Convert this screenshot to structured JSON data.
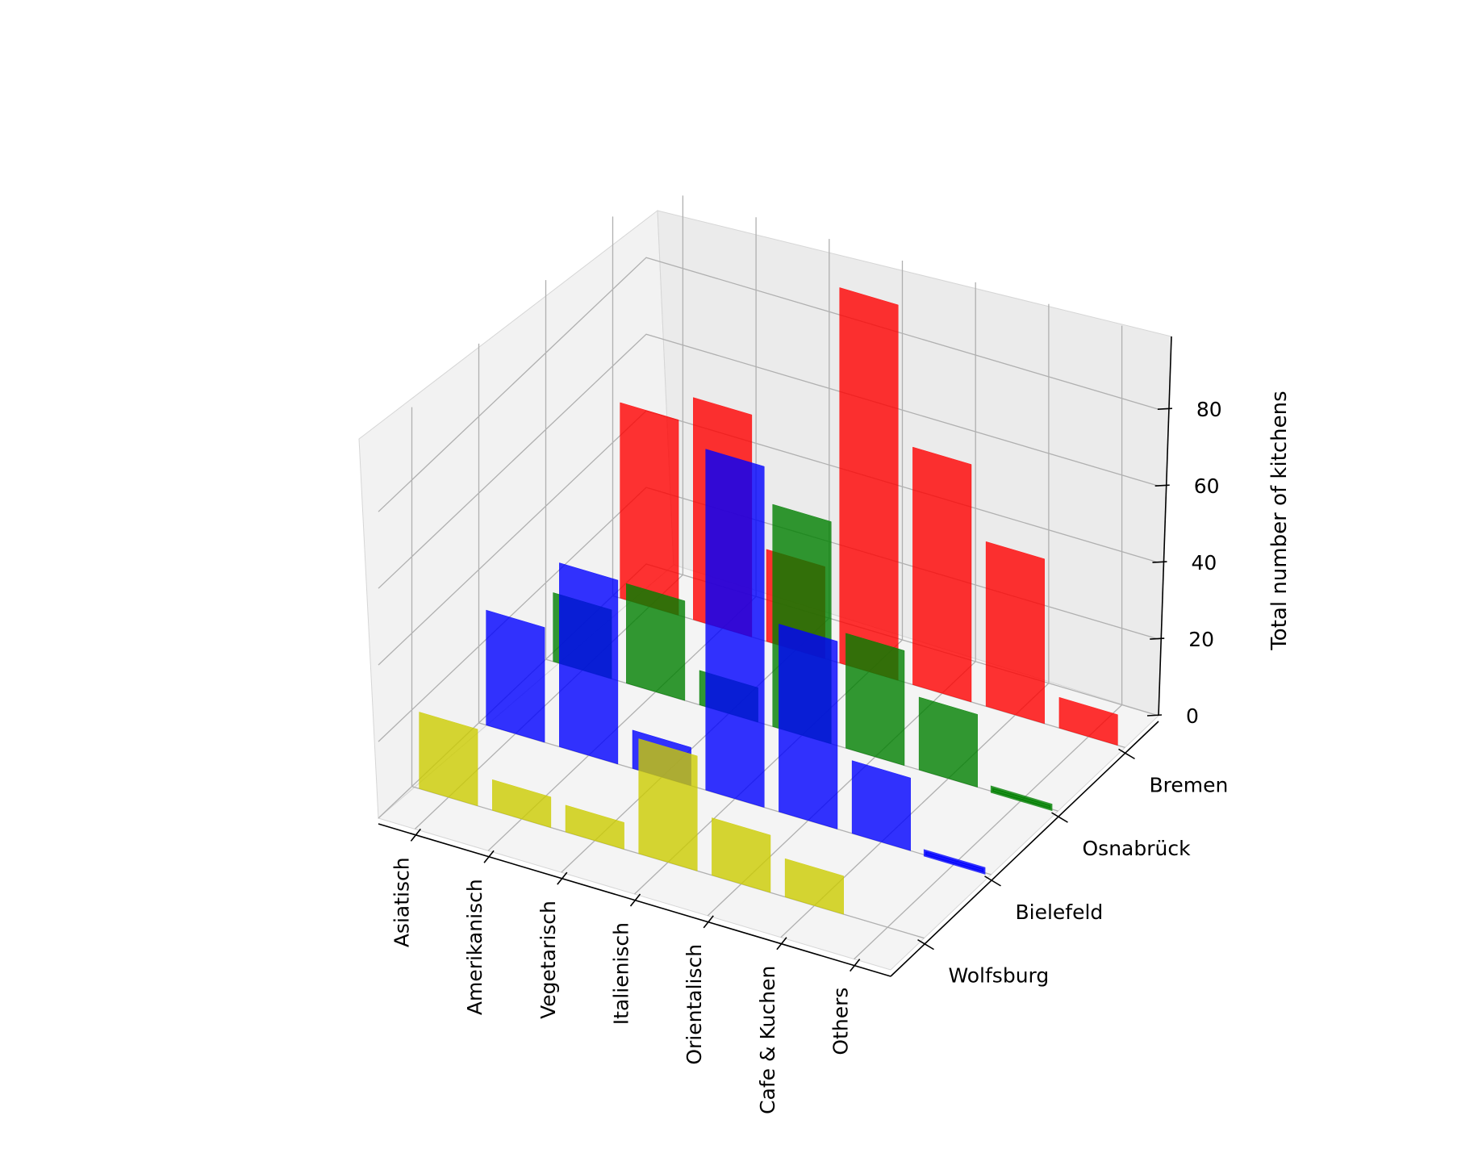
{
  "chart_data": {
    "type": "bar3d",
    "title": "",
    "xlabel": "",
    "ylabel": "",
    "zlabel": "Total number of kitchens",
    "categories": [
      "Asiatisch",
      "Amerikanisch",
      "Vegetarisch",
      "Italienisch",
      "Orientalisch",
      "Cafe & Kuchen",
      "Others"
    ],
    "cities": [
      "Wolfsburg",
      "Bielefeld",
      "Osnabrück",
      "Bremen"
    ],
    "zticks": [
      "0",
      "20",
      "40",
      "60",
      "80"
    ],
    "zlim": [
      0,
      99
    ],
    "series": [
      {
        "name": "Wolfsburg",
        "color": "#cccc00",
        "values": [
          20,
          8,
          7,
          30,
          15,
          10,
          0
        ]
      },
      {
        "name": "Bielefeld",
        "color": "#0000ff",
        "values": [
          30,
          48,
          10,
          89,
          49,
          19,
          1
        ]
      },
      {
        "name": "Osnabrück",
        "color": "#008000",
        "values": [
          18,
          26,
          9,
          58,
          30,
          19,
          1
        ]
      },
      {
        "name": "Bremen",
        "color": "#ff0000",
        "values": [
          51,
          58,
          24,
          98,
          62,
          43,
          8
        ]
      }
    ]
  }
}
